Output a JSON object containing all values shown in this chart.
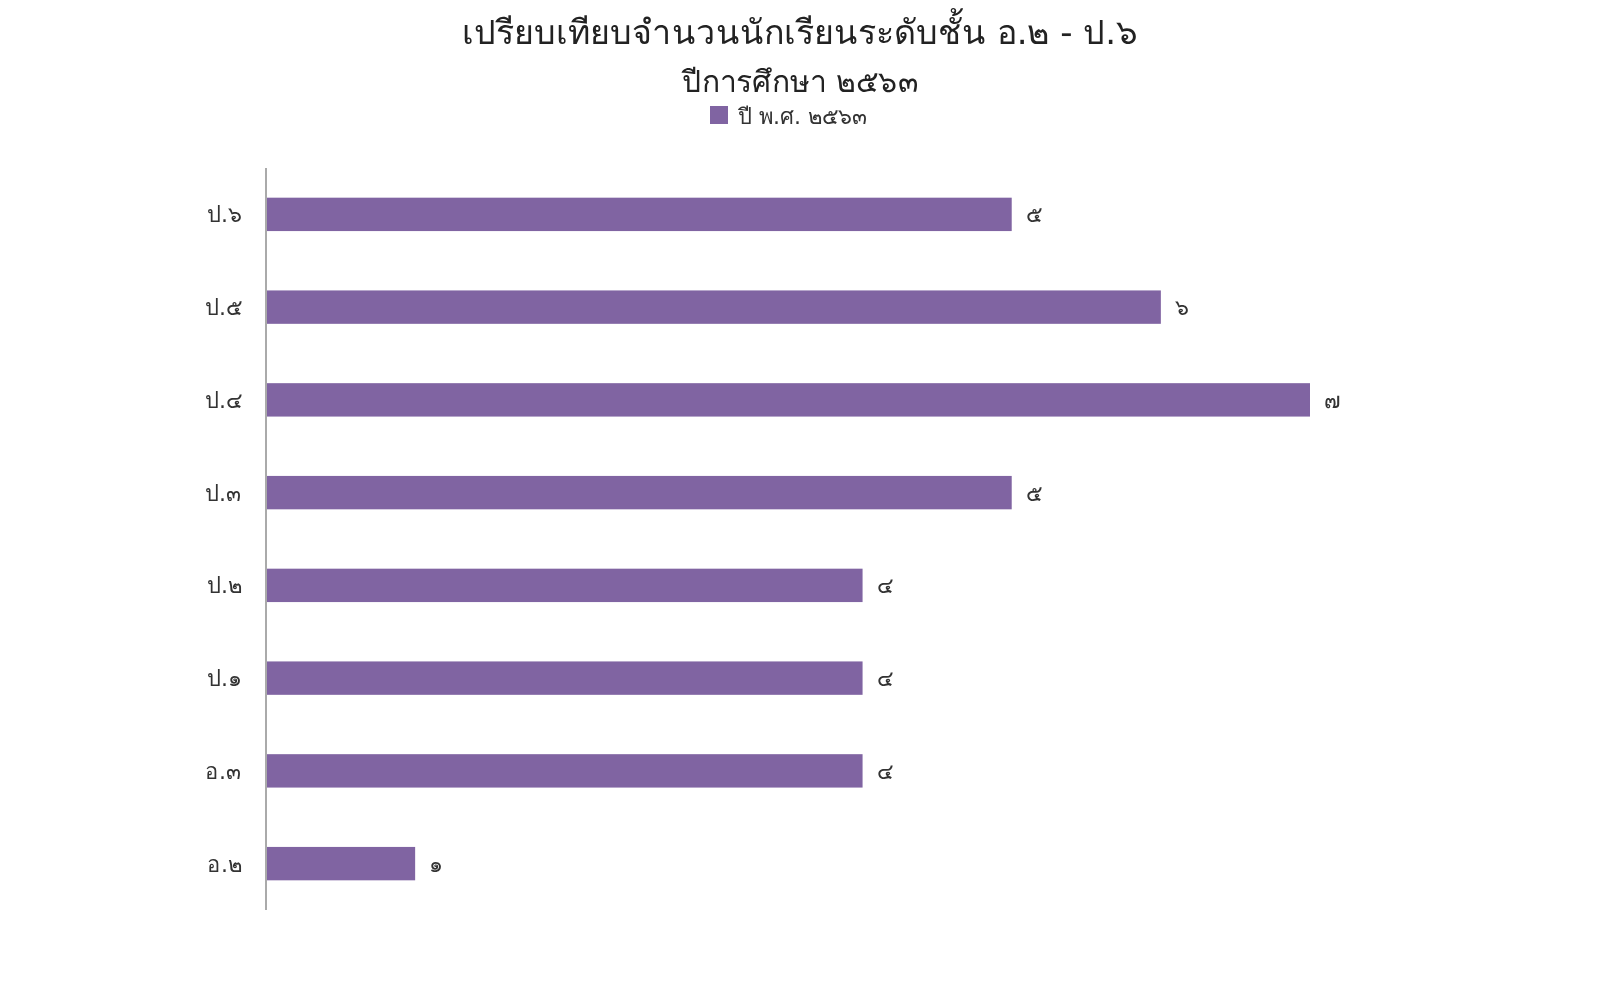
{
  "chart_data": {
    "type": "bar",
    "orientation": "horizontal",
    "title": "เปรียบเทียบจำนวนนักเรียนระดับชั้น อ.๒ - ป.๖",
    "subtitle": "ปีการศึกษา ๒๕๖๓",
    "categories": [
      "ป.๖",
      "ป.๕",
      "ป.๔",
      "ป.๓",
      "ป.๒",
      "ป.๑",
      "อ.๓",
      "อ.๒"
    ],
    "series": [
      {
        "name": "ปี พ.ศ. ๒๕๖๓",
        "color": "#8064a2",
        "values": [
          5,
          6,
          7,
          5,
          4,
          4,
          4,
          1
        ],
        "value_labels": [
          "๕",
          "๖",
          "๗",
          "๕",
          "๔",
          "๔",
          "๔",
          "๑"
        ]
      }
    ],
    "legend": "top",
    "grid": false
  }
}
